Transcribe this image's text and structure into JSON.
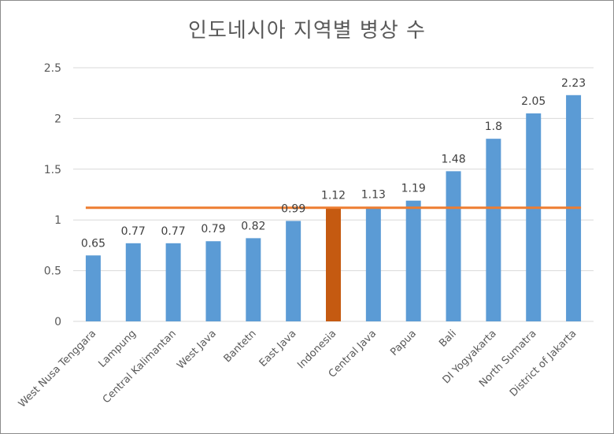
{
  "chart_data": {
    "type": "bar",
    "title": "인도네시아 지역별 병상 수",
    "categories": [
      "West Nusa Tenggara",
      "Lampung",
      "Central Kalimantan",
      "West Java",
      "Bantetn",
      "East Java",
      "Indonesia",
      "Central Java",
      "Papua",
      "Bali",
      "DI Yogyakarta",
      "North Sumatra",
      "District of Jakarta"
    ],
    "values": [
      0.65,
      0.77,
      0.77,
      0.79,
      0.82,
      0.99,
      1.12,
      1.13,
      1.19,
      1.48,
      1.8,
      2.05,
      2.23
    ],
    "data_labels": [
      "0.65",
      "0.77",
      "0.77",
      "0.79",
      "0.82",
      "0.99",
      "1.12",
      "1.13",
      "1.19",
      "1.48",
      "1.8",
      "2.05",
      "2.23"
    ],
    "ylim": [
      0,
      2.5
    ],
    "yticks": [
      0,
      0.5,
      1,
      1.5,
      2,
      2.5
    ],
    "ytick_labels": [
      "0",
      "0.5",
      "1",
      "1.5",
      "2",
      "2.5"
    ],
    "reference_line": {
      "value": 1.12,
      "color": "#ED7D31"
    },
    "highlight_category": "Indonesia",
    "grid": true,
    "colors": {
      "bar": "#5B9BD5",
      "highlight": "#C55A11",
      "grid": "#D9D9D9",
      "text": "#595959"
    }
  }
}
